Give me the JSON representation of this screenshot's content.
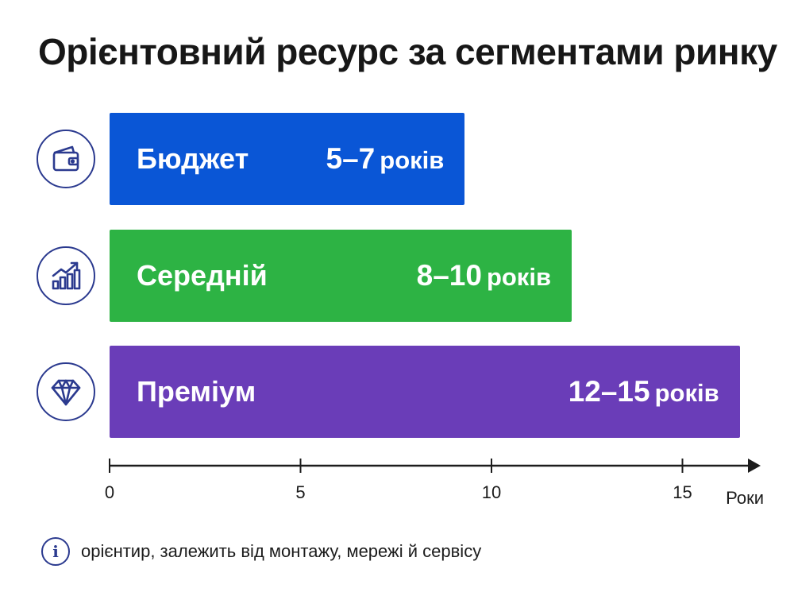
{
  "chart_data": {
    "type": "bar",
    "orientation": "horizontal",
    "title": "Орієнтовний ресурс за сегментами ринку",
    "xlabel": "Роки",
    "xlim": [
      0,
      17
    ],
    "ticks": [
      0,
      5,
      10,
      15
    ],
    "grid": false,
    "categories": [
      "Бюджет",
      "Середній",
      "Преміум"
    ],
    "ranges": [
      [
        5,
        7
      ],
      [
        8,
        10
      ],
      [
        12,
        15
      ]
    ],
    "bars": [
      {
        "label": "Бюджет",
        "range_text": "5–7",
        "unit": "років",
        "value": 9.3,
        "color": "#0a56d6",
        "icon": "wallet-icon"
      },
      {
        "label": "Середній",
        "range_text": "8–10",
        "unit": "років",
        "value": 12.1,
        "color": "#2db344",
        "icon": "growth-chart-icon"
      },
      {
        "label": "Преміум",
        "range_text": "12–15",
        "unit": "років",
        "value": 16.5,
        "color": "#6a3db8",
        "icon": "diamond-icon"
      }
    ],
    "note": "орієнтир, залежить від монтажу, мережі й сервісу"
  },
  "colors": {
    "icon_stroke": "#2b3a8f",
    "axis": "#1c1c1c"
  },
  "note_icon": "info-icon"
}
